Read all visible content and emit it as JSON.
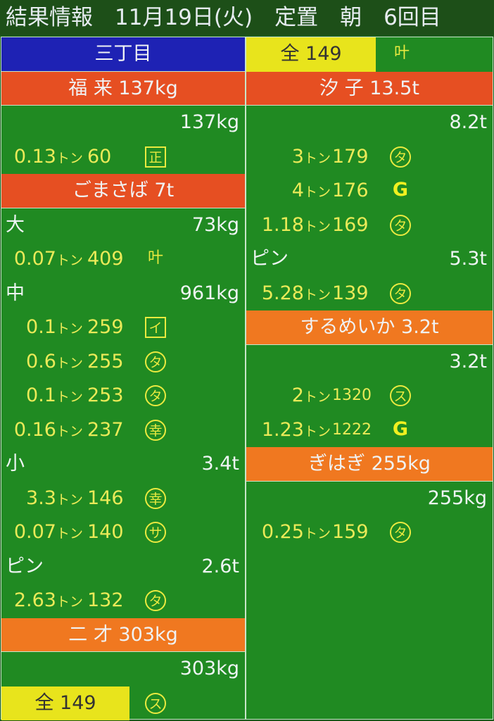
{
  "title": "結果情報　11月19日(火)　定置　朝　6回目",
  "unit": "トン",
  "left": [
    {
      "type": "header",
      "style": "blue",
      "text": "三丁目"
    },
    {
      "type": "header",
      "style": "orange",
      "text": "福 来 137kg"
    },
    {
      "type": "sub",
      "label": "",
      "value": "137kg"
    },
    {
      "type": "lot",
      "weight": "0.13",
      "price": "60",
      "buyer": "正",
      "icon": "square"
    },
    {
      "type": "header",
      "style": "orange",
      "text": "ごまさば 7t"
    },
    {
      "type": "sub",
      "label": "大",
      "value": "73kg"
    },
    {
      "type": "lot",
      "weight": "0.07",
      "price": "409",
      "buyer": "叶",
      "icon": "plain"
    },
    {
      "type": "sub",
      "label": "中",
      "value": "961kg"
    },
    {
      "type": "lot",
      "weight": "0.1",
      "price": "259",
      "buyer": "イ",
      "icon": "square"
    },
    {
      "type": "lot",
      "weight": "0.6",
      "price": "255",
      "buyer": "タ",
      "icon": "circle"
    },
    {
      "type": "lot",
      "weight": "0.1",
      "price": "253",
      "buyer": "タ",
      "icon": "circle"
    },
    {
      "type": "lot",
      "weight": "0.16",
      "price": "237",
      "buyer": "幸",
      "icon": "circle"
    },
    {
      "type": "sub",
      "label": "小",
      "value": "3.4t"
    },
    {
      "type": "lot",
      "weight": "3.3",
      "price": "146",
      "buyer": "幸",
      "icon": "circle"
    },
    {
      "type": "lot",
      "weight": "0.07",
      "price": "140",
      "buyer": "サ",
      "icon": "circle"
    },
    {
      "type": "sub",
      "label": "ピン",
      "value": "2.6t"
    },
    {
      "type": "lot",
      "weight": "2.63",
      "price": "132",
      "buyer": "タ",
      "icon": "circle"
    },
    {
      "type": "header",
      "style": "orange2",
      "text": "二 才 303kg"
    },
    {
      "type": "sub",
      "label": "",
      "value": "303kg"
    },
    {
      "type": "all",
      "text": "全 149",
      "buyer": "ス",
      "icon": "circle"
    }
  ],
  "right": [
    {
      "type": "all",
      "text": "全 149",
      "buyer": "叶",
      "icon": "plain"
    },
    {
      "type": "header",
      "style": "orange",
      "text": "汐 子 13.5t"
    },
    {
      "type": "sub",
      "label": "",
      "value": "8.2t"
    },
    {
      "type": "lot",
      "weight": "3",
      "price": "179",
      "buyer": "タ",
      "icon": "circle"
    },
    {
      "type": "lot",
      "weight": "4",
      "price": "176",
      "buyer": "G",
      "icon": "bold"
    },
    {
      "type": "lot",
      "weight": "1.18",
      "price": "169",
      "buyer": "タ",
      "icon": "circle"
    },
    {
      "type": "sub",
      "label": "ピン",
      "value": "5.3t"
    },
    {
      "type": "lot",
      "weight": "5.28",
      "price": "139",
      "buyer": "タ",
      "icon": "circle"
    },
    {
      "type": "header",
      "style": "orange2",
      "text": "するめいか 3.2t"
    },
    {
      "type": "sub",
      "label": "",
      "value": "3.2t"
    },
    {
      "type": "lot",
      "weight": "2",
      "price": "1320",
      "buyer": "ス",
      "icon": "circle"
    },
    {
      "type": "lot",
      "weight": "1.23",
      "price": "1222",
      "buyer": "G",
      "icon": "bold"
    },
    {
      "type": "header",
      "style": "orange2",
      "text": "ぎはぎ 255kg"
    },
    {
      "type": "sub",
      "label": "",
      "value": "255kg"
    },
    {
      "type": "lot",
      "weight": "0.25",
      "price": "159",
      "buyer": "タ",
      "icon": "circle"
    }
  ]
}
